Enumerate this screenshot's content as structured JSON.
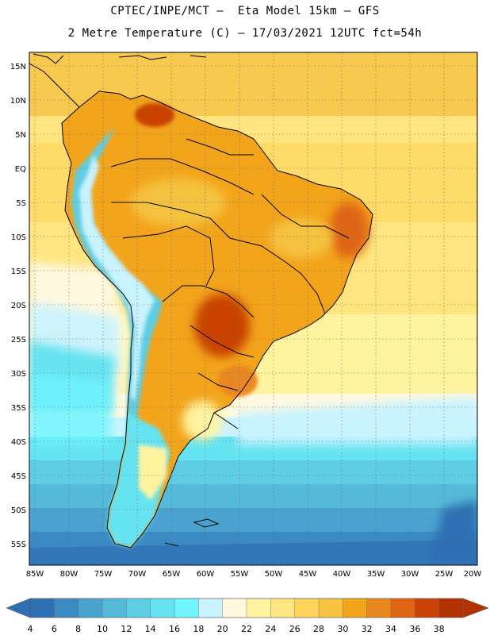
{
  "header": {
    "line1": "CPTEC/INPE/MCT –  Eta Model 15km – GFS",
    "line2": "2 Metre Temperature (C) – 17/03/2021 12UTC fct=54h"
  },
  "map": {
    "region": "South America",
    "lon_range": [
      -85,
      -20
    ],
    "lat_range": [
      -58,
      17
    ],
    "lat_ticks": [
      "15N",
      "10N",
      "5N",
      "EQ",
      "5S",
      "10S",
      "15S",
      "20S",
      "25S",
      "30S",
      "35S",
      "40S",
      "45S",
      "50S",
      "55S"
    ],
    "lon_ticks": [
      "85W",
      "80W",
      "75W",
      "70W",
      "65W",
      "60W",
      "55W",
      "50W",
      "45W",
      "40W",
      "35W",
      "30W",
      "25W",
      "20W"
    ]
  },
  "colorbar": {
    "labels": [
      "4",
      "6",
      "8",
      "10",
      "12",
      "14",
      "16",
      "18",
      "20",
      "22",
      "24",
      "26",
      "28",
      "30",
      "32",
      "34",
      "36",
      "38"
    ],
    "colors": [
      "#2f6fb3",
      "#3b8ac4",
      "#4aa3cf",
      "#55b9d9",
      "#5fcde3",
      "#66e3f0",
      "#70f5ff",
      "#c8f3ff",
      "#fff8df",
      "#fff3a0",
      "#ffe580",
      "#ffd45a",
      "#f5c241",
      "#f2a41b",
      "#e88820",
      "#df6512",
      "#c94306",
      "#b23300"
    ]
  }
}
